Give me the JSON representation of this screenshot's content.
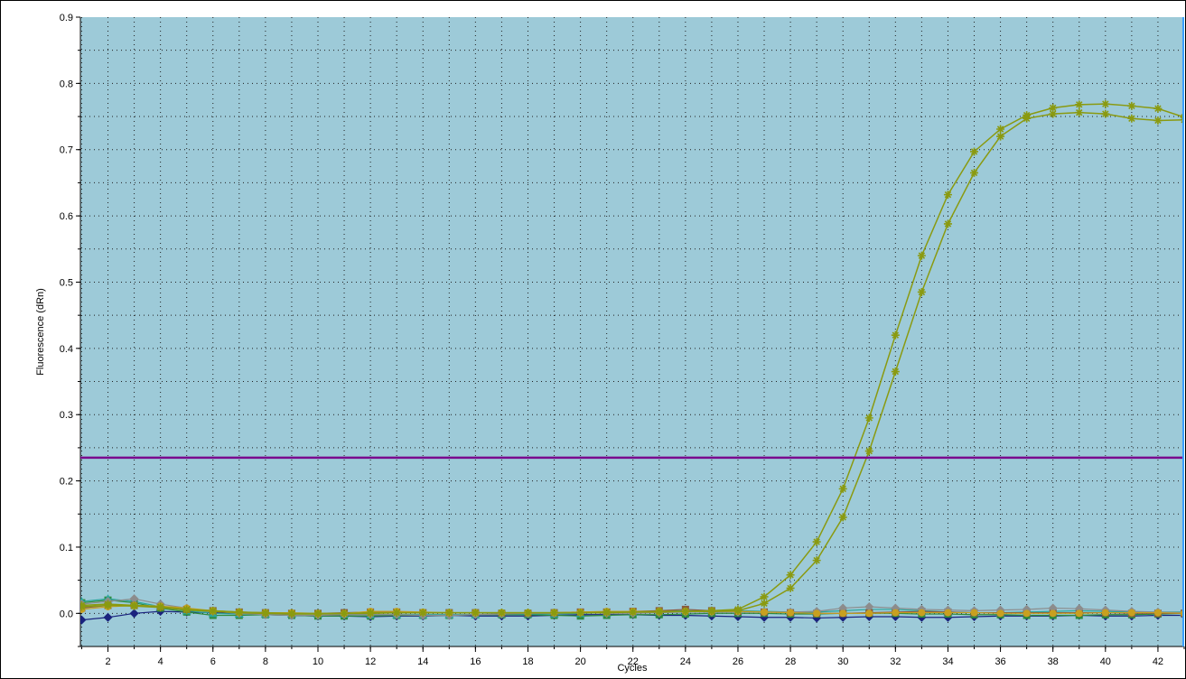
{
  "chart_data": {
    "type": "line",
    "xlabel": "Cycles",
    "ylabel": "Fluorescence (dRn)",
    "xlim": [
      0.95,
      43.0
    ],
    "ylim": [
      -0.05,
      0.9
    ],
    "xticks": [
      2,
      4,
      6,
      8,
      10,
      12,
      14,
      16,
      18,
      20,
      22,
      24,
      26,
      28,
      30,
      32,
      34,
      36,
      38,
      40,
      42
    ],
    "xtick_labels": [
      "2",
      "4",
      "6",
      "8",
      "10",
      "12",
      "14",
      "16",
      "18",
      "20",
      "22",
      "24",
      "26",
      "28",
      "30",
      "32",
      "34",
      "36",
      "38",
      "40",
      "42"
    ],
    "yticks": [
      0.0,
      0.1,
      0.2,
      0.3,
      0.4,
      0.5,
      0.6,
      0.7,
      0.8,
      0.9
    ],
    "ytick_labels": [
      "0.0",
      "0.1",
      "0.2",
      "0.3",
      "0.4",
      "0.5",
      "0.6",
      "0.7",
      "0.8",
      "0.9"
    ],
    "grid": true,
    "colors": {
      "plot_background": "#9dcad8",
      "threshold": "#7a0a8e",
      "amplification": "#8a9a10",
      "right_marker": "#3aa0ff",
      "grid": "#202020"
    },
    "threshold": 0.235,
    "x": [
      1,
      2,
      3,
      4,
      5,
      6,
      7,
      8,
      9,
      10,
      11,
      12,
      13,
      14,
      15,
      16,
      17,
      18,
      19,
      20,
      21,
      22,
      23,
      24,
      25,
      26,
      27,
      28,
      29,
      30,
      31,
      32,
      33,
      34,
      35,
      36,
      37,
      38,
      39,
      40,
      41,
      42,
      43
    ],
    "series": [
      {
        "color": "#8a9a10",
        "marker": "asterisk",
        "values": [
          0.012,
          0.014,
          0.012,
          0.01,
          0.006,
          0.004,
          0.002,
          0.001,
          0.0,
          0.0,
          0.0,
          0.001,
          0.001,
          0.001,
          0.001,
          0.001,
          0.001,
          0.001,
          0.001,
          0.001,
          0.002,
          0.002,
          0.003,
          0.003,
          0.004,
          0.006,
          0.025,
          0.058,
          0.108,
          0.188,
          0.295,
          0.42,
          0.54,
          0.632,
          0.697,
          0.731,
          0.752,
          0.763,
          0.768,
          0.769,
          0.766,
          0.762,
          0.749
        ]
      },
      {
        "color": "#8a9a10",
        "marker": "asterisk",
        "values": [
          0.01,
          0.012,
          0.011,
          0.009,
          0.005,
          0.003,
          0.001,
          0.0,
          -0.001,
          -0.001,
          0.0,
          0.0,
          0.001,
          0.001,
          0.001,
          0.001,
          0.001,
          0.001,
          0.001,
          0.001,
          0.001,
          0.002,
          0.002,
          0.003,
          0.003,
          0.004,
          0.015,
          0.038,
          0.08,
          0.145,
          0.245,
          0.365,
          0.485,
          0.588,
          0.665,
          0.72,
          0.747,
          0.754,
          0.756,
          0.754,
          0.747,
          0.744,
          0.745
        ]
      },
      {
        "color": "#1a237e",
        "marker": "diamond",
        "values": [
          -0.01,
          -0.006,
          0.0,
          0.003,
          0.002,
          0.001,
          0.0,
          -0.002,
          -0.003,
          -0.004,
          -0.004,
          -0.005,
          -0.004,
          -0.004,
          -0.003,
          -0.004,
          -0.004,
          -0.004,
          -0.003,
          -0.002,
          -0.002,
          -0.002,
          -0.003,
          -0.003,
          -0.004,
          -0.005,
          -0.006,
          -0.006,
          -0.007,
          -0.006,
          -0.005,
          -0.005,
          -0.006,
          -0.006,
          -0.005,
          -0.004,
          -0.004,
          -0.004,
          -0.003,
          -0.004,
          -0.004,
          -0.003,
          -0.003
        ]
      },
      {
        "color": "#2e8b3c",
        "marker": "square",
        "values": [
          0.016,
          0.02,
          0.016,
          0.008,
          0.002,
          -0.003,
          -0.003,
          -0.002,
          -0.003,
          -0.004,
          -0.004,
          -0.004,
          -0.003,
          -0.003,
          -0.003,
          -0.002,
          -0.002,
          -0.002,
          -0.003,
          -0.004,
          -0.003,
          -0.002,
          -0.002,
          -0.001,
          0.0,
          0.0,
          0.0,
          -0.001,
          -0.001,
          0.0,
          0.0,
          0.0,
          -0.001,
          -0.001,
          -0.002,
          -0.002,
          -0.003,
          -0.003,
          -0.003,
          -0.002,
          -0.002,
          -0.001,
          0.0
        ]
      },
      {
        "color": "#2aa59a",
        "marker": "triangle",
        "values": [
          0.018,
          0.022,
          0.018,
          0.01,
          0.004,
          0.0,
          -0.001,
          -0.001,
          -0.001,
          -0.001,
          -0.001,
          -0.002,
          -0.002,
          -0.002,
          -0.002,
          -0.002,
          -0.001,
          -0.001,
          -0.001,
          0.0,
          0.001,
          0.002,
          0.003,
          0.004,
          0.004,
          0.004,
          0.003,
          0.002,
          0.002,
          0.004,
          0.006,
          0.006,
          0.004,
          0.002,
          0.001,
          0.001,
          0.002,
          0.003,
          0.004,
          0.003,
          0.002,
          0.002,
          0.002
        ]
      },
      {
        "color": "#8b5a3c",
        "marker": "square",
        "values": [
          0.008,
          0.012,
          0.012,
          0.01,
          0.006,
          0.004,
          0.002,
          0.001,
          0.0,
          0.0,
          0.001,
          0.002,
          0.002,
          0.001,
          0.001,
          0.001,
          0.0,
          0.0,
          0.001,
          0.002,
          0.002,
          0.003,
          0.004,
          0.006,
          0.004,
          0.003,
          0.002,
          0.001,
          0.0,
          0.0,
          0.001,
          0.002,
          0.003,
          0.002,
          0.001,
          0.001,
          0.001,
          0.001,
          0.001,
          0.001,
          0.0,
          0.0,
          0.0
        ]
      },
      {
        "color": "#8c8c8c",
        "marker": "diamond",
        "values": [
          0.014,
          0.018,
          0.022,
          0.014,
          0.008,
          0.003,
          0.0,
          -0.002,
          -0.003,
          -0.003,
          -0.002,
          -0.002,
          -0.002,
          -0.003,
          -0.003,
          -0.002,
          -0.001,
          0.0,
          0.0,
          0.001,
          0.0,
          0.0,
          0.001,
          0.002,
          0.002,
          0.002,
          0.002,
          0.002,
          0.003,
          0.008,
          0.01,
          0.008,
          0.006,
          0.005,
          0.004,
          0.005,
          0.006,
          0.008,
          0.007,
          0.005,
          0.003,
          0.002,
          0.001
        ]
      },
      {
        "color": "#c8a020",
        "marker": "circle",
        "values": [
          0.006,
          0.01,
          0.012,
          0.011,
          0.008,
          0.004,
          0.002,
          0.001,
          0.001,
          0.0,
          0.0,
          0.003,
          0.003,
          0.002,
          0.001,
          0.001,
          0.001,
          0.001,
          0.001,
          0.002,
          0.003,
          0.003,
          0.003,
          0.003,
          0.003,
          0.003,
          0.002,
          0.001,
          0.0,
          0.0,
          0.0,
          0.001,
          0.001,
          0.001,
          0.001,
          0.0,
          0.0,
          0.0,
          0.0,
          0.001,
          0.001,
          0.001,
          0.0
        ]
      }
    ]
  }
}
